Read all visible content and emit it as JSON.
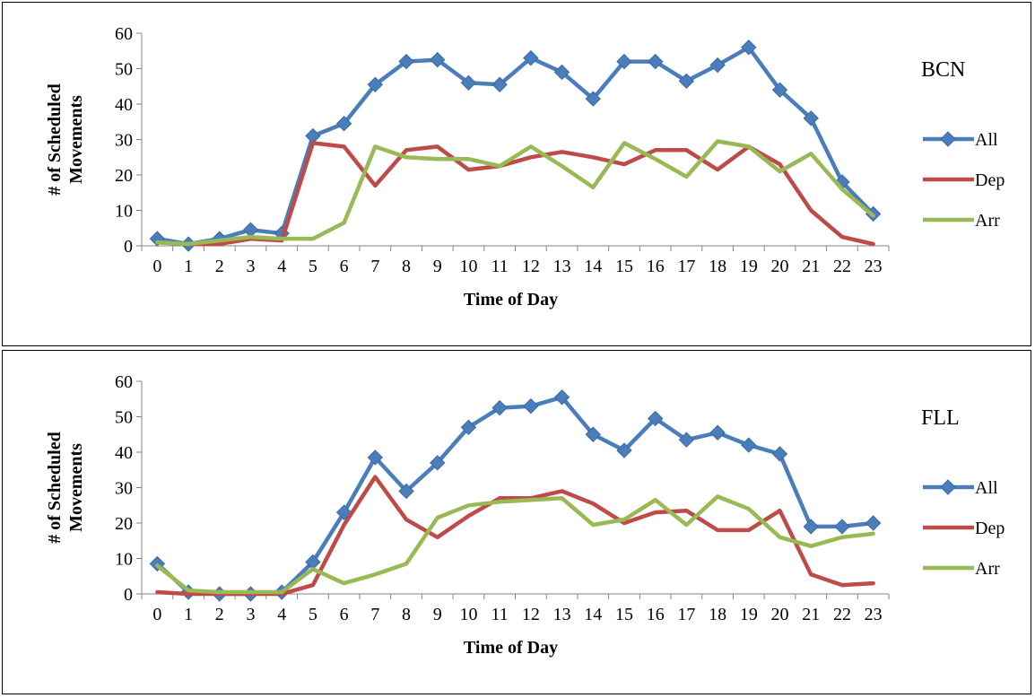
{
  "chart_data": [
    {
      "type": "line",
      "title": "BCN",
      "xlabel": "Time of Day",
      "ylabel": "# of Scheduled Movements",
      "ylabel_lines": [
        "# of Scheduled",
        "Movements"
      ],
      "ylim": [
        0,
        60
      ],
      "yticks": [
        0,
        10,
        20,
        30,
        40,
        50,
        60
      ],
      "grid": false,
      "legend": "right",
      "categories": [
        "0",
        "1",
        "2",
        "3",
        "4",
        "5",
        "6",
        "7",
        "8",
        "9",
        "10",
        "11",
        "12",
        "13",
        "14",
        "15",
        "16",
        "17",
        "18",
        "19",
        "20",
        "21",
        "22",
        "23"
      ],
      "series": [
        {
          "name": "All",
          "color": "#4a7ebb",
          "marker": "diamond",
          "values": [
            2,
            0.5,
            2,
            4.5,
            3.5,
            31,
            34.5,
            45.5,
            52,
            52.5,
            46,
            45.5,
            53,
            49,
            41.5,
            52,
            52,
            46.5,
            51,
            56,
            44,
            36,
            18,
            9
          ]
        },
        {
          "name": "Dep",
          "color": "#be4b48",
          "marker": "none",
          "values": [
            1,
            0.5,
            0.5,
            2,
            1.5,
            29,
            28,
            17,
            27,
            28,
            21.5,
            22.5,
            25,
            26.5,
            25,
            23,
            27,
            27,
            21.5,
            28,
            23,
            10,
            2.5,
            0.5
          ]
        },
        {
          "name": "Arr",
          "color": "#98b954",
          "marker": "none",
          "values": [
            1,
            0.5,
            1.5,
            2.5,
            2,
            2,
            6.5,
            28,
            25,
            24.5,
            24.5,
            22.5,
            28,
            22.5,
            16.5,
            29,
            24.5,
            19.5,
            29.5,
            28,
            21,
            26,
            16,
            8.5
          ]
        }
      ]
    },
    {
      "type": "line",
      "title": "FLL",
      "xlabel": "Time of Day",
      "ylabel": "# of Scheduled Movements",
      "ylabel_lines": [
        "# of Scheduled",
        "Movements"
      ],
      "ylim": [
        0,
        60
      ],
      "yticks": [
        0,
        10,
        20,
        30,
        40,
        50,
        60
      ],
      "grid": false,
      "legend": "right",
      "categories": [
        "0",
        "1",
        "2",
        "3",
        "4",
        "5",
        "6",
        "7",
        "8",
        "9",
        "10",
        "11",
        "12",
        "13",
        "14",
        "15",
        "16",
        "17",
        "18",
        "19",
        "20",
        "21",
        "22",
        "23"
      ],
      "series": [
        {
          "name": "All",
          "color": "#4a7ebb",
          "marker": "diamond",
          "values": [
            8.5,
            0.5,
            0,
            0,
            0.5,
            9,
            23,
            38.5,
            29,
            37,
            47,
            52.5,
            53,
            55.5,
            45,
            40.5,
            49.5,
            43.5,
            45.5,
            42,
            39.5,
            19,
            19,
            20
          ]
        },
        {
          "name": "Dep",
          "color": "#be4b48",
          "marker": "none",
          "values": [
            0.5,
            0,
            0,
            0,
            0,
            2.5,
            19.5,
            33,
            21,
            16,
            22,
            27,
            27,
            29,
            25.5,
            20,
            23,
            23.5,
            18,
            18,
            23.5,
            5.5,
            2.5,
            3
          ]
        },
        {
          "name": "Arr",
          "color": "#98b954",
          "marker": "none",
          "values": [
            8,
            1,
            0.5,
            0.5,
            0.5,
            7,
            3,
            5.5,
            8.5,
            21.5,
            25,
            26,
            26.5,
            27,
            19.5,
            21,
            26.5,
            19.5,
            27.5,
            24,
            16,
            13.5,
            16,
            17
          ]
        }
      ]
    }
  ]
}
